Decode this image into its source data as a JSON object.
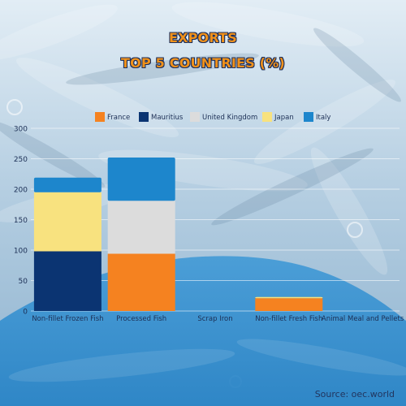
{
  "title_line1": "EXPORTS",
  "title_line2": "TOP 5 COUNTRIES (%)",
  "source": "Source: oec.world",
  "colors": {
    "title_text": "#f0911a",
    "title_outline": "#1b2f5e",
    "axis_text": "#1c2f55",
    "source_text": "#22355e",
    "bg_top": "#dbe8f2",
    "bg_mid": "#a9c6dd",
    "wave": "#2e8ed0"
  },
  "chart_data": {
    "type": "bar",
    "stacked": true,
    "categories": [
      "Non-fillet Frozen Fish",
      "Processed Fish",
      "Scrap Iron",
      "Non-fillet Fresh Fish",
      "Animal Meal and Pellets"
    ],
    "series": [
      {
        "name": "France",
        "color": "#f58220",
        "values": [
          0,
          94,
          0,
          21,
          0
        ]
      },
      {
        "name": "Mauritius",
        "color": "#0b3472",
        "values": [
          98,
          0,
          0,
          0,
          0
        ]
      },
      {
        "name": "United Kingdom",
        "color": "#dcdcdc",
        "values": [
          0,
          87,
          0,
          0,
          0
        ]
      },
      {
        "name": "Japan",
        "color": "#f8e27f",
        "values": [
          97,
          0,
          0,
          2,
          0
        ]
      },
      {
        "name": "Italy",
        "color": "#1d86cc",
        "values": [
          24,
          71,
          0,
          0,
          0
        ]
      }
    ],
    "ylim": [
      0,
      300
    ],
    "yticks": [
      0,
      50,
      100,
      150,
      200,
      250,
      300
    ],
    "grid": true,
    "legend": "top"
  }
}
